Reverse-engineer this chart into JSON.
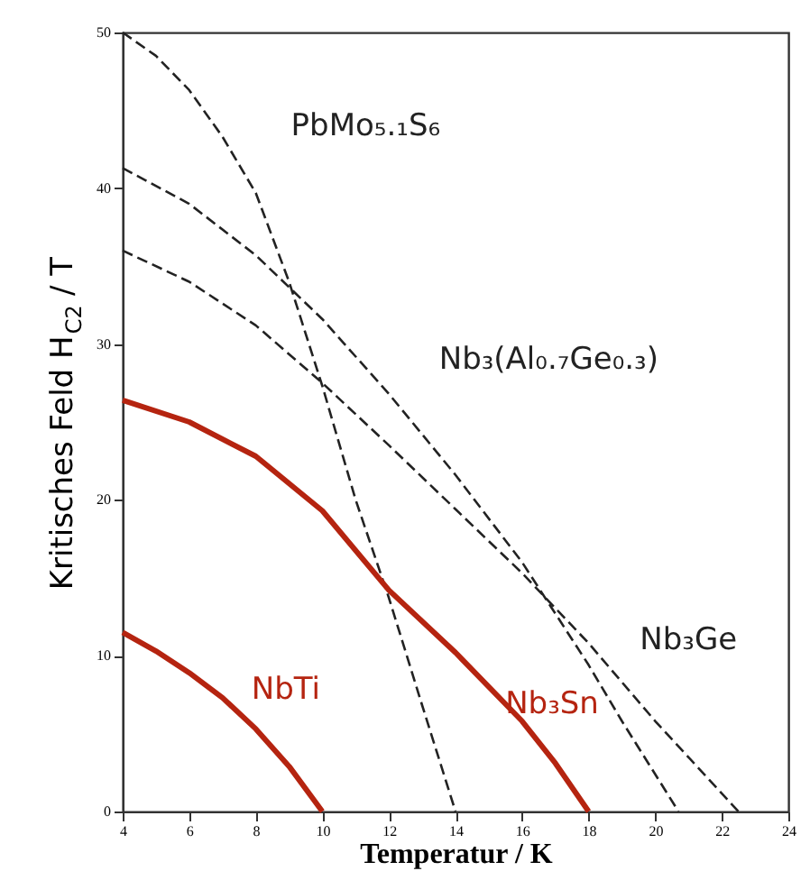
{
  "chart_data": {
    "type": "line",
    "xlabel": "Temperatur / K",
    "ylabel": "Kritisches Feld H$_{C2}$ / T",
    "xlim": [
      4,
      24
    ],
    "xticks": [
      4,
      6,
      8,
      10,
      12,
      14,
      16,
      18,
      20,
      22,
      24
    ],
    "ylim": [
      0,
      50
    ],
    "yticks": [
      0,
      10,
      20,
      30,
      40,
      50
    ],
    "grid": false,
    "legend": false,
    "marker": "none",
    "series": [
      {
        "name": "PbMo₅.₁S₆",
        "color": "#222222",
        "line_style": "dashed",
        "x": [
          4,
          5,
          6,
          7,
          8,
          9,
          10,
          11,
          12,
          13,
          14
        ],
        "values": [
          50,
          48.5,
          46.3,
          43.3,
          39.7,
          34,
          27.3,
          20,
          13.7,
          6.8,
          0
        ]
      },
      {
        "name": "Nb₃(Al₀.₇Ge₀.₃)",
        "color": "#222222",
        "line_style": "dashed",
        "x": [
          4,
          6,
          8,
          10,
          12,
          14,
          16,
          18,
          19,
          20.7
        ],
        "values": [
          41.3,
          39,
          35.7,
          31.6,
          26.8,
          21.6,
          16,
          9.4,
          5.8,
          0
        ]
      },
      {
        "name": "Nb₃Ge",
        "color": "#222222",
        "line_style": "dashed",
        "x": [
          4,
          6,
          8,
          10,
          12,
          14,
          16,
          18,
          20,
          22.5
        ],
        "values": [
          36,
          34,
          31.2,
          27.5,
          23.5,
          19.4,
          15.3,
          10.8,
          5.8,
          0
        ]
      },
      {
        "name": "Nb₃Sn",
        "color": "#b52410",
        "line_style": "solid",
        "x": [
          4,
          6,
          8,
          10,
          12,
          14,
          16,
          17,
          18
        ],
        "values": [
          26.4,
          25,
          22.8,
          19.3,
          14.2,
          10.2,
          5.8,
          3.1,
          0
        ]
      },
      {
        "name": "NbTi",
        "color": "#b52410",
        "line_style": "solid",
        "x": [
          4,
          5,
          6,
          7,
          8,
          9,
          10
        ],
        "values": [
          11.5,
          10.3,
          8.9,
          7.3,
          5.3,
          2.9,
          0
        ]
      }
    ]
  }
}
